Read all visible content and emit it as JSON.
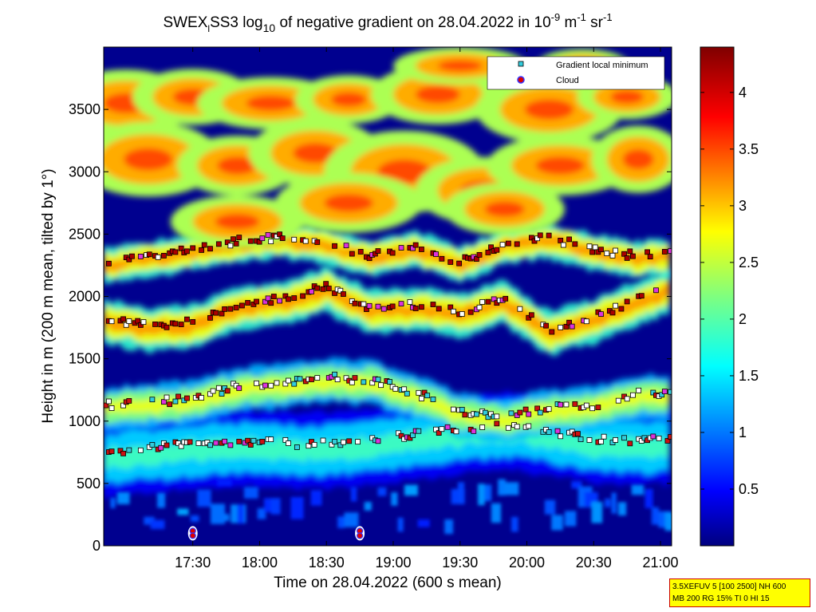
{
  "chart_data": {
    "type": "heatmap",
    "title": {
      "prefix": "SWEX",
      "sub": "l",
      "mid": "SS3 log",
      "sub2": "10",
      "rest": " of negative gradient on 28.04.2022 in 10",
      "sup1": "-9",
      "unit1": " m",
      "sup2": "-1",
      "unit2": " sr",
      "sup3": "-1"
    },
    "xlabel": "Time on 28.04.2022 (600 s mean)",
    "ylabel": "Height in m (200 m mean, tilted by 1°)",
    "xlim_minutes": [
      1010,
      1265
    ],
    "ylim": [
      0,
      4000
    ],
    "x_ticks": [
      {
        "label": "17:30",
        "minute": 1050
      },
      {
        "label": "18:00",
        "minute": 1080
      },
      {
        "label": "18:30",
        "minute": 1110
      },
      {
        "label": "19:00",
        "minute": 1140
      },
      {
        "label": "19:30",
        "minute": 1170
      },
      {
        "label": "20:00",
        "minute": 1200
      },
      {
        "label": "20:30",
        "minute": 1230
      },
      {
        "label": "21:00",
        "minute": 1260
      }
    ],
    "y_ticks": [
      {
        "label": "0",
        "value": 0
      },
      {
        "label": "500",
        "value": 500
      },
      {
        "label": "1000",
        "value": 1000
      },
      {
        "label": "1500",
        "value": 1500
      },
      {
        "label": "2000",
        "value": 2000
      },
      {
        "label": "2500",
        "value": 2500
      },
      {
        "label": "3000",
        "value": 3000
      },
      {
        "label": "3500",
        "value": 3500
      }
    ],
    "colorbar": {
      "range": [
        0,
        4.4
      ],
      "ticks": [
        {
          "label": "0.5",
          "value": 0.5
        },
        {
          "label": "1",
          "value": 1
        },
        {
          "label": "1.5",
          "value": 1.5
        },
        {
          "label": "2",
          "value": 2
        },
        {
          "label": "2.5",
          "value": 2.5
        },
        {
          "label": "3",
          "value": 3
        },
        {
          "label": "3.5",
          "value": 3.5
        },
        {
          "label": "4",
          "value": 4
        }
      ],
      "colormap": "jet"
    },
    "legend": {
      "placement": "top-right",
      "entries": [
        {
          "name": "Gradient local minimum",
          "marker": "square",
          "color": "#33ccdd"
        },
        {
          "name": "Cloud",
          "marker": "circle",
          "color": "#dd0000"
        }
      ]
    },
    "layers": [
      {
        "name": "low bright band",
        "kind": "band",
        "value": 1.4,
        "points": [
          [
            1010,
            700
          ],
          [
            1030,
            730
          ],
          [
            1050,
            760
          ],
          [
            1070,
            780
          ],
          [
            1090,
            770
          ],
          [
            1110,
            760
          ],
          [
            1130,
            790
          ],
          [
            1150,
            840
          ],
          [
            1170,
            880
          ],
          [
            1190,
            920
          ],
          [
            1210,
            870
          ],
          [
            1230,
            800
          ],
          [
            1250,
            790
          ],
          [
            1265,
            800
          ]
        ],
        "thickness": 360
      },
      {
        "name": "layer 1000-1400",
        "kind": "band",
        "value": 2.2,
        "points": [
          [
            1010,
            1100
          ],
          [
            1030,
            1120
          ],
          [
            1050,
            1150
          ],
          [
            1070,
            1250
          ],
          [
            1090,
            1280
          ],
          [
            1110,
            1320
          ],
          [
            1130,
            1300
          ],
          [
            1150,
            1200
          ],
          [
            1170,
            1050
          ],
          [
            1190,
            1000
          ],
          [
            1210,
            1080
          ],
          [
            1230,
            1100
          ],
          [
            1250,
            1200
          ],
          [
            1265,
            1180
          ]
        ],
        "thickness": 200
      },
      {
        "name": "layer 1600-2100",
        "kind": "band",
        "value": 2.7,
        "points": [
          [
            1010,
            1800
          ],
          [
            1030,
            1740
          ],
          [
            1050,
            1760
          ],
          [
            1070,
            1900
          ],
          [
            1090,
            1950
          ],
          [
            1110,
            2050
          ],
          [
            1130,
            1880
          ],
          [
            1150,
            1900
          ],
          [
            1170,
            1850
          ],
          [
            1190,
            1950
          ],
          [
            1210,
            1700
          ],
          [
            1230,
            1800
          ],
          [
            1250,
            1950
          ],
          [
            1265,
            2050
          ]
        ],
        "thickness": 200
      },
      {
        "name": "layer 2200-2500",
        "kind": "band",
        "value": 2.7,
        "points": [
          [
            1010,
            2250
          ],
          [
            1030,
            2300
          ],
          [
            1050,
            2350
          ],
          [
            1070,
            2420
          ],
          [
            1090,
            2450
          ],
          [
            1110,
            2400
          ],
          [
            1130,
            2300
          ],
          [
            1150,
            2380
          ],
          [
            1170,
            2250
          ],
          [
            1190,
            2400
          ],
          [
            1210,
            2450
          ],
          [
            1230,
            2350
          ],
          [
            1250,
            2300
          ],
          [
            1265,
            2320
          ]
        ],
        "thickness": 160
      },
      {
        "name": "upper patches",
        "kind": "patches",
        "value": 3.1,
        "blobs": [
          [
            1020,
            3550,
            20,
            180
          ],
          [
            1050,
            3600,
            18,
            150
          ],
          [
            1085,
            3550,
            22,
            140
          ],
          [
            1120,
            3580,
            16,
            130
          ],
          [
            1160,
            3620,
            20,
            160
          ],
          [
            1210,
            3500,
            22,
            180
          ],
          [
            1245,
            3600,
            15,
            120
          ],
          [
            1030,
            3100,
            22,
            200
          ],
          [
            1070,
            3050,
            18,
            160
          ],
          [
            1105,
            3150,
            20,
            180
          ],
          [
            1145,
            3000,
            24,
            220
          ],
          [
            1180,
            2850,
            20,
            180
          ],
          [
            1215,
            3050,
            22,
            160
          ],
          [
            1250,
            3100,
            14,
            180
          ],
          [
            1070,
            2600,
            20,
            140
          ],
          [
            1120,
            2750,
            22,
            160
          ],
          [
            1190,
            2700,
            18,
            140
          ],
          [
            1170,
            3850,
            20,
            100
          ],
          [
            1225,
            3850,
            14,
            90
          ]
        ]
      },
      {
        "name": "cloud markers",
        "kind": "clouds",
        "points": [
          [
            1050,
            100
          ],
          [
            1125,
            100
          ]
        ]
      }
    ]
  },
  "infobox": {
    "line1": "3.5XEFUV 5 [100 2500] NH 600",
    "line2": "MB 200 RG 15% TI 0 HI 15"
  }
}
